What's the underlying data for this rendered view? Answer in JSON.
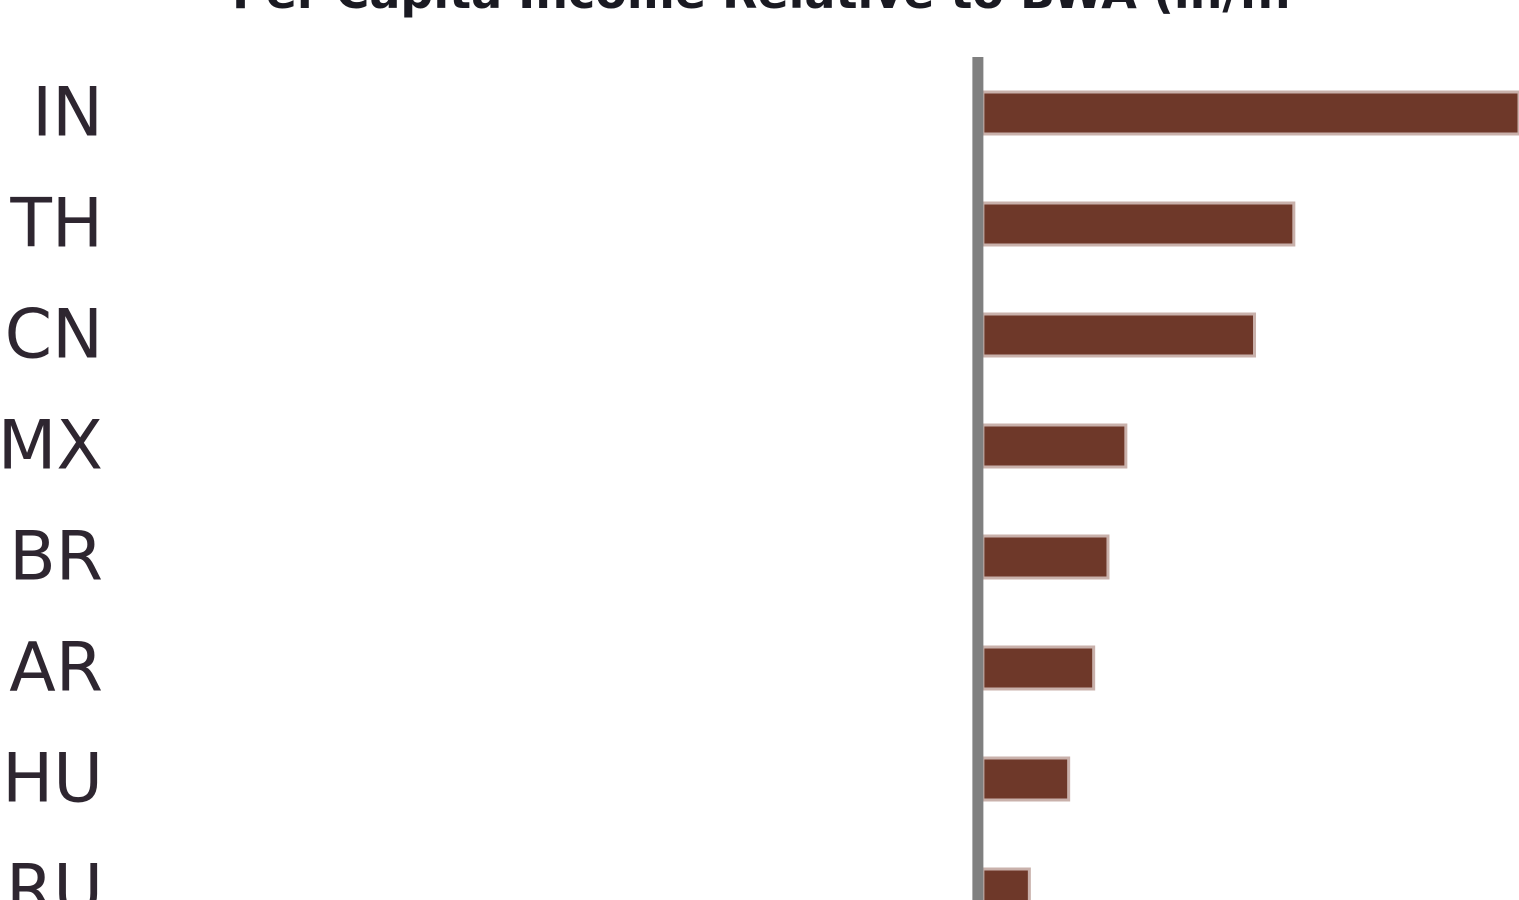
{
  "chart_data": {
    "type": "bar",
    "orientation": "horizontal",
    "title": "Per Capita Income Relative to BWA (in/...",
    "categories": [
      "IN",
      "TH",
      "CN",
      "MX",
      "BR",
      "AR",
      "HU",
      "RU"
    ],
    "values": [
      1.5,
      0.87,
      0.76,
      0.4,
      0.35,
      0.31,
      0.24,
      0.13
    ],
    "xlim": [
      -2.75,
      1.5
    ],
    "baseline": 0,
    "xlabel": "",
    "ylabel": "",
    "grid": false,
    "legend": "none",
    "colors": {
      "bar": "#6e3829",
      "bar_edge": "#c9b1ab",
      "axis": "#808080",
      "label": "#2e2630",
      "title": "#1a1a22"
    }
  }
}
